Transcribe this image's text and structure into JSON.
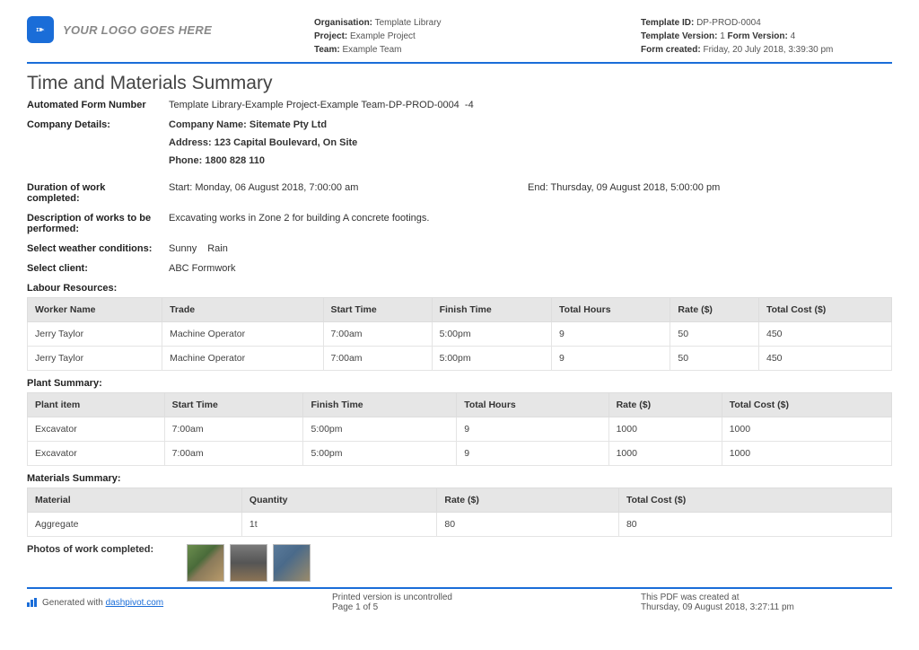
{
  "header": {
    "logo_placeholder": "YOUR LOGO GOES HERE",
    "org_label": "Organisation:",
    "org_value": "Template Library",
    "project_label": "Project:",
    "project_value": "Example Project",
    "team_label": "Team:",
    "team_value": "Example Team",
    "template_id_label": "Template ID:",
    "template_id_value": "DP-PROD-0004",
    "template_version_label": "Template Version:",
    "template_version_value": "1",
    "form_version_label": "Form Version:",
    "form_version_value": "4",
    "form_created_label": "Form created:",
    "form_created_value": "Friday, 20 July 2018, 3:39:30 pm"
  },
  "title": "Time and Materials Summary",
  "fields": {
    "form_number_label": "Automated Form Number",
    "form_number_value": "Template Library-Example Project-Example Team-DP-PROD-0004  -4",
    "company_details_label": "Company Details:",
    "company_name": "Company Name: Sitemate Pty Ltd",
    "company_address": "Address: 123 Capital Boulevard, On Site",
    "company_phone": "Phone: 1800 828 110",
    "duration_label": "Duration of work completed:",
    "duration_start": "Start: Monday, 06 August 2018, 7:00:00 am",
    "duration_end": "End: Thursday, 09 August 2018, 5:00:00 pm",
    "description_label": "Description of works to be performed:",
    "description_value": "Excavating works in Zone 2 for building A concrete footings.",
    "weather_label": "Select weather conditions:",
    "weather_value1": "Sunny",
    "weather_value2": "Rain",
    "client_label": "Select client:",
    "client_value": "ABC Formwork"
  },
  "labour": {
    "section_label": "Labour Resources:",
    "columns": [
      "Worker Name",
      "Trade",
      "Start Time",
      "Finish Time",
      "Total Hours",
      "Rate ($)",
      "Total Cost ($)"
    ],
    "col_widths_pct": [
      13,
      13,
      13,
      13,
      13,
      13,
      13
    ],
    "rows": [
      [
        "Jerry Taylor",
        "Machine Operator",
        "7:00am",
        "5:00pm",
        "9",
        "50",
        "450"
      ],
      [
        "Jerry Taylor",
        "Machine Operator",
        "7:00am",
        "5:00pm",
        "9",
        "50",
        "450"
      ]
    ]
  },
  "plant": {
    "section_label": "Plant Summary:",
    "columns": [
      "Plant item",
      "Start Time",
      "Finish Time",
      "Total Hours",
      "Rate ($)",
      "Total Cost ($)"
    ],
    "rows": [
      [
        "Excavator",
        "7:00am",
        "5:00pm",
        "9",
        "1000",
        "1000"
      ],
      [
        "Excavator",
        "7:00am",
        "5:00pm",
        "9",
        "1000",
        "1000"
      ]
    ]
  },
  "materials": {
    "section_label": "Materials Summary:",
    "columns": [
      "Material",
      "Quantity",
      "Rate ($)",
      "Total Cost ($)"
    ],
    "rows": [
      [
        "Aggregate",
        "1t",
        "80",
        "80"
      ]
    ]
  },
  "photos_label": "Photos of work completed:",
  "footer": {
    "generated_prefix": "Generated with ",
    "generated_link": "dashpivot.com",
    "uncontrolled": "Printed version is uncontrolled",
    "page": "Page 1 of 5",
    "created_at_label": "This PDF was created at",
    "created_at_value": "Thursday, 09 August 2018, 3:27:11 pm"
  }
}
